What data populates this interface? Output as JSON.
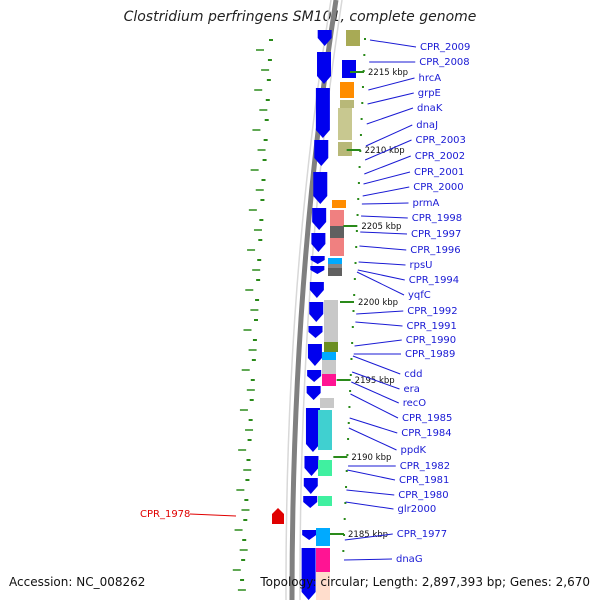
{
  "title": "Clostridium perfringens SM101, complete genome",
  "accession": "Accession: NC_008262",
  "summary": "Topology: circular; Length: 2,897,393 bp; Genes: 2,670",
  "kbp_marks": [
    "2215 kbp",
    "2210 kbp",
    "2205 kbp",
    "2200 kbp",
    "2195 kbp",
    "2190 kbp",
    "2185 kbp"
  ],
  "genes": [
    "CPR_2009",
    "CPR_2008",
    "hrcA",
    "grpE",
    "dnaK",
    "dnaJ",
    "CPR_2003",
    "CPR_2002",
    "CPR_2001",
    "CPR_2000",
    "prmA",
    "CPR_1998",
    "CPR_1997",
    "CPR_1996",
    "rpsU",
    "CPR_1994",
    "yqfC",
    "CPR_1992",
    "CPR_1991",
    "CPR_1990",
    "CPR_1989",
    "cdd",
    "era",
    "recO",
    "CPR_1985",
    "CPR_1984",
    "ppdK",
    "CPR_1982",
    "CPR_1981",
    "CPR_1980",
    "glr2000",
    "CPR_1977",
    "dnaG"
  ],
  "highlight_gene": "CPR_1978",
  "colors": {
    "gene_label": "#1a1ad4",
    "highlight": "#e00000",
    "forward_gene": "#0000ee",
    "gc_skew": "#2a8a1a",
    "backbone": "#808080"
  }
}
